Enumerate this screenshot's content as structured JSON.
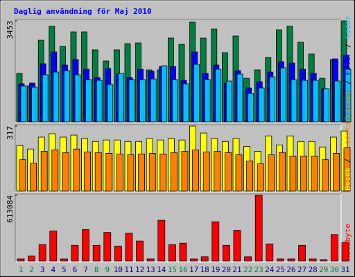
{
  "chart_data": [
    {
      "type": "bar",
      "title": "Daglig användning för Maj 2010",
      "ylim": [
        0,
        3453
      ],
      "yticks": [
        3453
      ],
      "series": [
        {
          "name": "Träffar",
          "color": "#008040",
          "values": [
            1655,
            1230,
            2790,
            3264,
            2578,
            3074,
            3074,
            2460,
            2081,
            2460,
            2672,
            2696,
            1774,
            1774,
            2862,
            2649,
            3406,
            2862,
            3169,
            2365,
            2933,
            1490,
            1774,
            2199,
            3145,
            3264,
            2720,
            2318,
            1490,
            2128,
            3453
          ]
        },
        {
          "name": "Filer",
          "color": "#0000ff",
          "values": [
            1301,
            1324,
            1987,
            2389,
            1940,
            2128,
            1797,
            1514,
            1821,
            1632,
            1514,
            1797,
            1726,
            1892,
            1892,
            1419,
            2389,
            1655,
            1940,
            1324,
            1750,
            1159,
            1372,
            1703,
            2058,
            2010,
            1797,
            1655,
            1135,
            2152,
            2270
          ]
        },
        {
          "name": "Sidor",
          "color": "#00c0ff",
          "values": [
            1230,
            1182,
            1608,
            1703,
            1750,
            1608,
            1443,
            1419,
            1277,
            1655,
            1443,
            1443,
            1466,
            1916,
            1443,
            1301,
            1963,
            1443,
            1797,
            1395,
            1632,
            970,
            1159,
            1537,
            1845,
            1443,
            1419,
            1419,
            1135,
            1395,
            1797
          ]
        }
      ]
    },
    {
      "type": "bar",
      "ylim": [
        0,
        317
      ],
      "yticks": [
        317
      ],
      "series": [
        {
          "name": "Besök",
          "color": "#ffff00",
          "values": [
            222,
            205,
            263,
            280,
            263,
            273,
            256,
            242,
            249,
            249,
            242,
            242,
            256,
            249,
            256,
            249,
            317,
            283,
            256,
            242,
            256,
            218,
            194,
            269,
            225,
            269,
            242,
            242,
            215,
            263,
            293
          ]
        },
        {
          "name": "Klientadresser",
          "color": "#ff8000",
          "values": [
            153,
            136,
            194,
            201,
            188,
            205,
            191,
            188,
            184,
            181,
            177,
            181,
            184,
            181,
            188,
            194,
            201,
            191,
            194,
            188,
            177,
            147,
            133,
            177,
            188,
            171,
            171,
            171,
            153,
            184,
            211
          ]
        }
      ]
    },
    {
      "type": "bar",
      "ylim": [
        0,
        613084
      ],
      "yticks": [
        613084
      ],
      "categories": [
        "1",
        "2",
        "3",
        "4",
        "5",
        "6",
        "7",
        "8",
        "9",
        "10",
        "11",
        "12",
        "13",
        "14",
        "15",
        "16",
        "17",
        "18",
        "19",
        "20",
        "21",
        "22",
        "23",
        "24",
        "25",
        "26",
        "27",
        "28",
        "29",
        "30",
        "31"
      ],
      "category_colors": [
        "#008040",
        "#008040",
        "#000080",
        "#000080",
        "#000080",
        "#000080",
        "#000080",
        "#008040",
        "#008040",
        "#000080",
        "#000080",
        "#000080",
        "#000080",
        "#000080",
        "#008040",
        "#008040",
        "#000080",
        "#000080",
        "#000080",
        "#000080",
        "#000080",
        "#008040",
        "#008040",
        "#000080",
        "#000080",
        "#000080",
        "#000080",
        "#000080",
        "#008040",
        "#008040",
        "#000080"
      ],
      "series": [
        {
          "name": "Kilobyte",
          "color": "#ff0000",
          "values": [
            20000,
            46650,
            153270,
            279890,
            20000,
            146610,
            293220,
            146610,
            266560,
            139940,
            259900,
            186590,
            20000,
            379850,
            153270,
            166600,
            20000,
            39980,
            366520,
            146610,
            286550,
            39980,
            613084,
            159940,
            20000,
            20000,
            146610,
            20000,
            13330,
            246570,
            173260
          ]
        }
      ]
    }
  ]
}
